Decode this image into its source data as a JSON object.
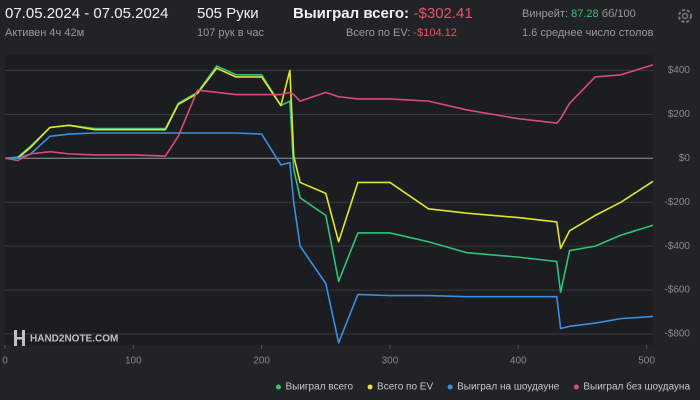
{
  "header": {
    "date_range": "07.05.2024 - 07.05.2024",
    "active": "Активен 4ч 42м",
    "hands": "505 Руки",
    "hands_per_hour": "107 рук в час",
    "won_total_label": "Выиграл всего:",
    "won_total_value": "-$302.41",
    "ev_label": "Всего по EV:",
    "ev_value": "-$104.12",
    "winrate_label": "Винрейт:",
    "winrate_value": "87.28",
    "winrate_unit": "бб/100",
    "tables": "1.6 среднее число столов",
    "watermark": "HAND2NOTE.COM"
  },
  "chart_data": {
    "type": "line",
    "x": [
      0,
      10,
      20,
      35,
      50,
      70,
      100,
      125,
      135,
      150,
      165,
      180,
      200,
      215,
      222,
      225,
      230,
      250,
      260,
      275,
      300,
      330,
      360,
      400,
      430,
      433,
      440,
      460,
      480,
      505
    ],
    "series": [
      {
        "name": "Выиграл всего",
        "color": "#2fc47a",
        "values": [
          0,
          5,
          55,
          140,
          150,
          135,
          135,
          135,
          250,
          300,
          420,
          380,
          380,
          240,
          260,
          -50,
          -180,
          -260,
          -560,
          -340,
          -340,
          -380,
          -430,
          -450,
          -470,
          -610,
          -420,
          -400,
          -350,
          -305
        ]
      },
      {
        "name": "Всего по EV",
        "color": "#e3e332",
        "values": [
          0,
          0,
          50,
          140,
          150,
          130,
          130,
          130,
          245,
          295,
          410,
          370,
          370,
          240,
          400,
          10,
          -110,
          -160,
          -380,
          -110,
          -110,
          -230,
          -250,
          -270,
          -290,
          -410,
          -330,
          -260,
          -200,
          -105
        ]
      },
      {
        "name": "Выиграл на шоудауне",
        "color": "#3a8fe0",
        "values": [
          0,
          0,
          20,
          100,
          110,
          115,
          115,
          115,
          115,
          115,
          115,
          115,
          110,
          -30,
          -20,
          -200,
          -400,
          -570,
          -840,
          -620,
          -625,
          -625,
          -630,
          -630,
          -630,
          -775,
          -765,
          -750,
          -730,
          -720
        ]
      },
      {
        "name": "Выиграл без шоудауна",
        "color": "#d94a7f",
        "values": [
          0,
          -10,
          20,
          30,
          20,
          15,
          15,
          10,
          100,
          310,
          300,
          290,
          290,
          290,
          300,
          290,
          260,
          300,
          280,
          270,
          270,
          260,
          220,
          180,
          160,
          180,
          250,
          370,
          380,
          425
        ]
      }
    ],
    "xlim": [
      0,
      505
    ],
    "xticks": [
      0,
      100,
      200,
      300,
      400,
      500
    ],
    "ylim": [
      -850,
      470
    ],
    "yticks": [
      {
        "value": 400,
        "label": "$400"
      },
      {
        "value": 200,
        "label": "$200"
      },
      {
        "value": 0,
        "label": "$0"
      },
      {
        "value": -200,
        "label": "-$200"
      },
      {
        "value": -400,
        "label": "-$400"
      },
      {
        "value": -600,
        "label": "-$600"
      },
      {
        "value": -800,
        "label": "-$800"
      }
    ],
    "grid": true
  }
}
